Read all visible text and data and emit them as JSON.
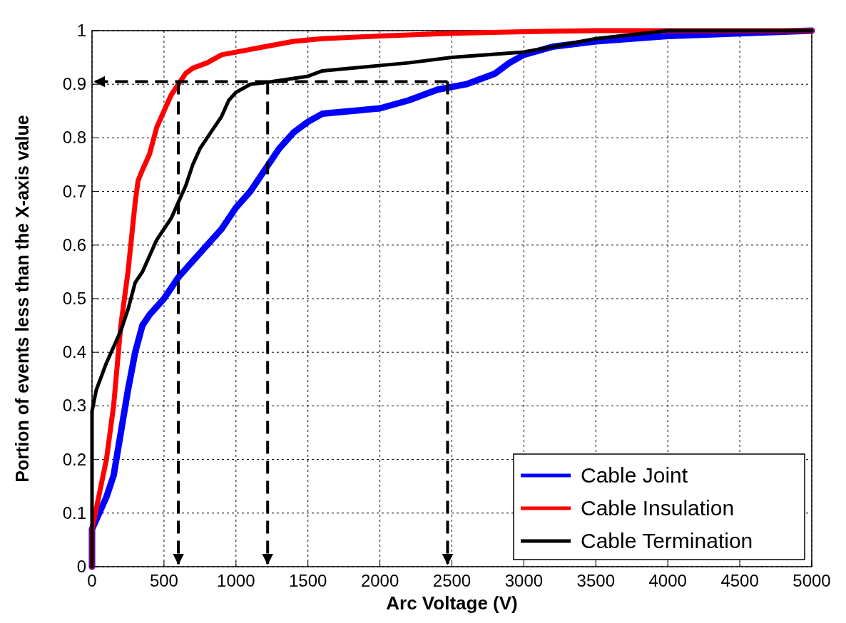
{
  "chart_data": {
    "type": "line",
    "xlabel": "Arc Voltage (V)",
    "ylabel": "Portion of events less than the X-axis value",
    "xlim": [
      0,
      5000
    ],
    "xticks": [
      0,
      500,
      1000,
      1500,
      2000,
      2500,
      3000,
      3500,
      4000,
      4500,
      5000
    ],
    "ylim": [
      0,
      1
    ],
    "yticks": [
      0,
      0.1,
      0.2,
      0.3,
      0.4,
      0.5,
      0.6,
      0.7,
      0.8,
      0.9,
      1
    ],
    "grid": true,
    "legend": "bottom right",
    "marker": "none",
    "line_style": "solid",
    "series": [
      {
        "name": "Cable Joint",
        "color": "#0000ff",
        "x": [
          0,
          0,
          50,
          100,
          150,
          200,
          250,
          300,
          350,
          400,
          500,
          600,
          700,
          800,
          900,
          1000,
          1100,
          1200,
          1300,
          1400,
          1500,
          1600,
          1800,
          2000,
          2200,
          2400,
          2600,
          2800,
          2900,
          3000,
          3200,
          3500,
          4000,
          4500,
          5000
        ],
        "values": [
          0,
          0.07,
          0.1,
          0.13,
          0.17,
          0.25,
          0.33,
          0.4,
          0.45,
          0.47,
          0.5,
          0.54,
          0.57,
          0.6,
          0.63,
          0.67,
          0.7,
          0.74,
          0.78,
          0.81,
          0.83,
          0.845,
          0.85,
          0.855,
          0.87,
          0.89,
          0.9,
          0.92,
          0.94,
          0.955,
          0.97,
          0.98,
          0.99,
          0.995,
          1
        ]
      },
      {
        "name": "Cable Insulation",
        "color": "#ff0000",
        "x": [
          0,
          0,
          100,
          150,
          200,
          250,
          300,
          320,
          350,
          400,
          450,
          500,
          550,
          600,
          650,
          700,
          800,
          900,
          1000,
          1200,
          1400,
          1600,
          2000,
          2500,
          3000,
          3500,
          5000
        ],
        "values": [
          0,
          0.07,
          0.2,
          0.3,
          0.45,
          0.55,
          0.68,
          0.72,
          0.74,
          0.77,
          0.82,
          0.85,
          0.88,
          0.9,
          0.92,
          0.93,
          0.94,
          0.955,
          0.96,
          0.97,
          0.98,
          0.985,
          0.99,
          0.995,
          0.998,
          1,
          1
        ]
      },
      {
        "name": "Cable Termination",
        "color": "#000000",
        "x": [
          0,
          0,
          30,
          100,
          200,
          250,
          300,
          350,
          400,
          450,
          500,
          550,
          600,
          650,
          700,
          750,
          800,
          900,
          950,
          1000,
          1100,
          1250,
          1500,
          1600,
          2000,
          2200,
          2500,
          3000,
          3300,
          3500,
          4000,
          5000
        ],
        "values": [
          0,
          0.29,
          0.33,
          0.38,
          0.44,
          0.48,
          0.53,
          0.55,
          0.58,
          0.61,
          0.63,
          0.65,
          0.68,
          0.71,
          0.75,
          0.78,
          0.8,
          0.84,
          0.87,
          0.885,
          0.9,
          0.905,
          0.915,
          0.925,
          0.935,
          0.94,
          0.95,
          0.96,
          0.975,
          0.985,
          1,
          1
        ]
      }
    ],
    "ref_lines": [
      {
        "axis": "x",
        "value": 600,
        "line_style": "dashed",
        "color": "#000000"
      },
      {
        "axis": "x",
        "value": 1220,
        "line_style": "dashed",
        "color": "#000000"
      },
      {
        "axis": "x",
        "value": 2470,
        "line_style": "dashed",
        "color": "#000000"
      },
      {
        "axis": "y",
        "value": 0.905,
        "line_style": "dashed",
        "color": "#000000"
      }
    ]
  }
}
